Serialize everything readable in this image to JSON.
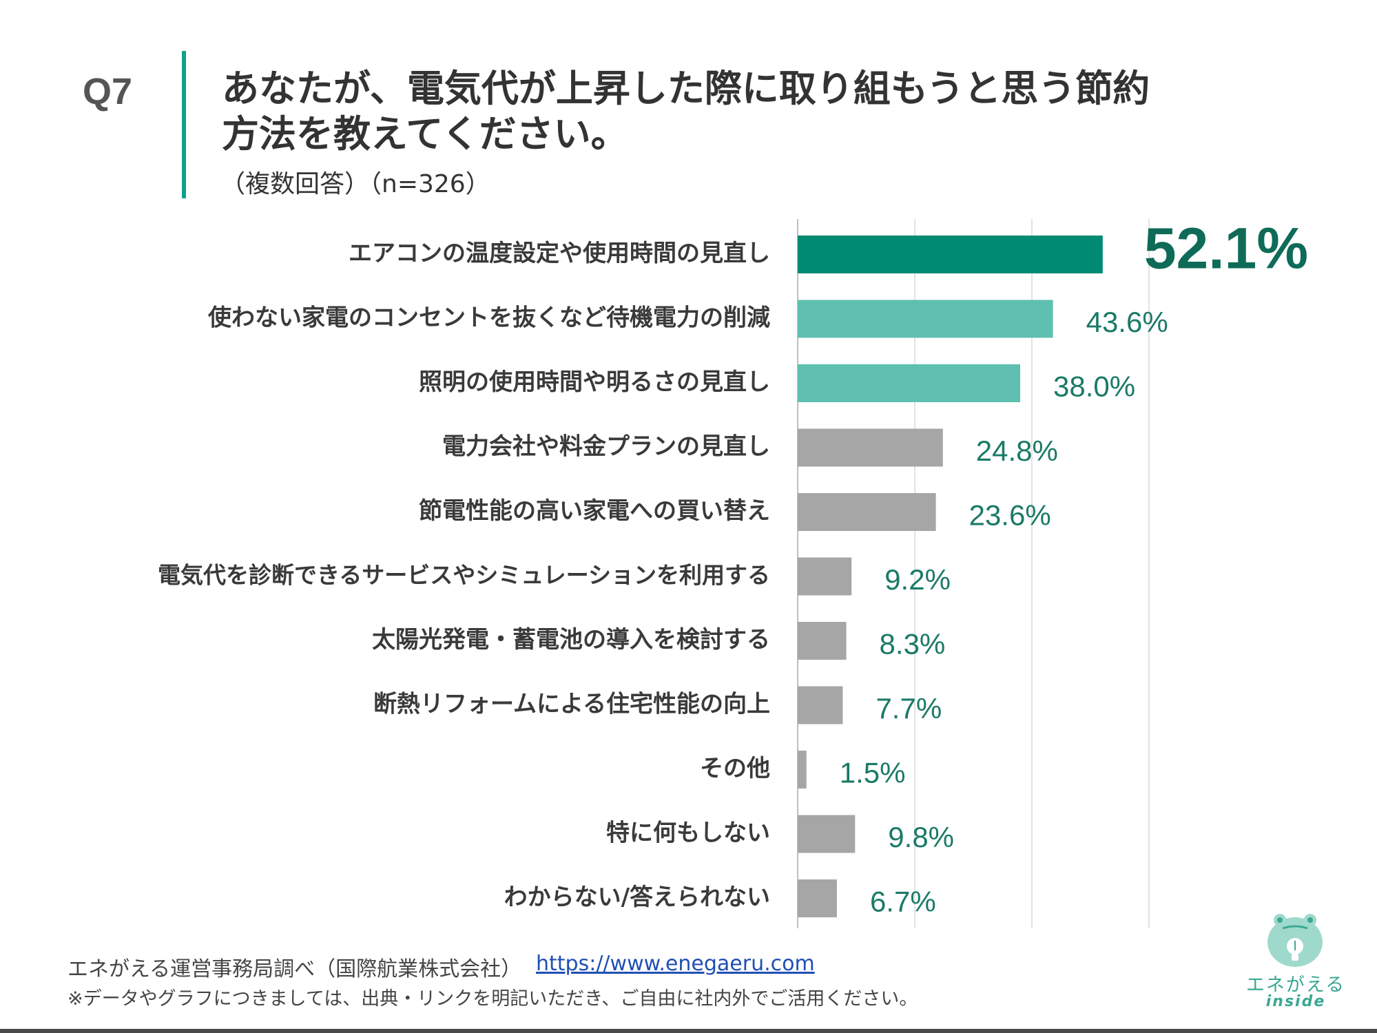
{
  "header": {
    "question_label": "Q7",
    "title": "あなたが、電気代が上昇した際に取り組もうと思う節約方法を教えてください。",
    "subtitle": "（複数回答）（n=326）"
  },
  "chart_data": {
    "type": "bar",
    "orientation": "horizontal",
    "categories": [
      "エアコンの温度設定や使用時間の見直し",
      "使わない家電のコンセントを抜くなど待機電力の削減",
      "照明の使用時間や明るさの見直し",
      "電力会社や料金プランの見直し",
      "節電性能の高い家電への買い替え",
      "電気代を診断できるサービスやシミュレーションを利用する",
      "太陽光発電・蓄電池の導入を検討する",
      "断熱リフォームによる住宅性能の向上",
      "その他",
      "特に何もしない",
      "わからない/答えられない"
    ],
    "values": [
      52.1,
      43.6,
      38.0,
      24.8,
      23.6,
      9.2,
      8.3,
      7.7,
      1.5,
      9.8,
      6.7
    ],
    "value_labels": [
      "52.1%",
      "43.6%",
      "38.0%",
      "24.8%",
      "23.6%",
      "9.2%",
      "8.3%",
      "7.7%",
      "1.5%",
      "9.8%",
      "6.7%"
    ],
    "bar_colors": [
      "#008a73",
      "#5fbfb0",
      "#5fbfb0",
      "#a6a6a6",
      "#a6a6a6",
      "#a6a6a6",
      "#a6a6a6",
      "#a6a6a6",
      "#a6a6a6",
      "#a6a6a6",
      "#a6a6a6"
    ],
    "label_color": "#1a7a66",
    "xlim": [
      0,
      60
    ],
    "gridlines": [
      0,
      20,
      40,
      60
    ],
    "grid": true,
    "title": "",
    "xlabel": "",
    "ylabel": ""
  },
  "footer": {
    "source": "エネがえる運営事務局調べ（国際航業株式会社）",
    "link": "https://www.enegaeru.com",
    "note": "※データやグラフにつきましては、出典・リンクを明記いただき、ご自由に社内外でご活用ください。"
  },
  "logo": {
    "text": "エネがえる",
    "sub": "inside",
    "color": "#3aa893"
  }
}
